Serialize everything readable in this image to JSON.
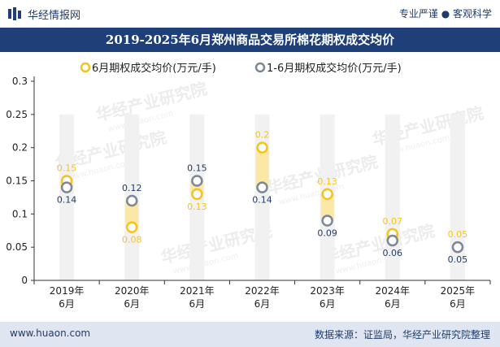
{
  "header": {
    "brand": "华经情报网",
    "tagline": "专业严谨 ● 客观科学"
  },
  "title": "2019-2025年6月郑州商品交易所棉花期权成交均价",
  "footer": {
    "website": "www.huaon.com",
    "source": "数据来源：证监局，华经产业研究院整理"
  },
  "watermark": "华经产业研究院",
  "watermark_url": "www.huaon.com",
  "colors": {
    "series1": "#f7c31a",
    "series2": "#7c8797",
    "band": "#fbe7a6",
    "column": "#f1f1f1",
    "title_bg": "#1e3f78",
    "footer_bg": "#dfe6f2"
  },
  "chart_data": {
    "type": "line",
    "categories": [
      "2019年\n6月",
      "2020年\n6月",
      "2021年\n6月",
      "2022年\n6月",
      "2023年\n6月",
      "2024年\n6月",
      "2025年\n6月"
    ],
    "series": [
      {
        "name": "6月期权成交均价(万元/手)",
        "values": [
          0.15,
          0.08,
          0.13,
          0.2,
          0.13,
          0.07,
          0.05
        ]
      },
      {
        "name": "1-6月期权成交均价(万元/手)",
        "values": [
          0.14,
          0.12,
          0.15,
          0.14,
          0.09,
          0.06,
          0.05
        ]
      }
    ],
    "ylim": [
      0,
      0.3
    ],
    "yticks": [
      "0",
      "0.05",
      "0.1",
      "0.15",
      "0.2",
      "0.25",
      "0.3"
    ],
    "legend_position": "top-center",
    "grid": false
  }
}
